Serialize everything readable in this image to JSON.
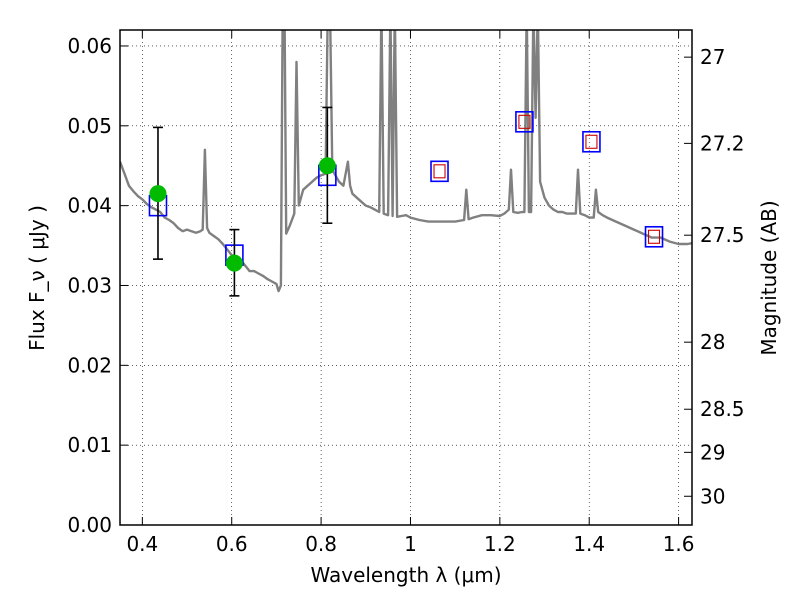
{
  "chart_data": {
    "type": "line",
    "xlabel": "Wavelength  λ (μm)",
    "ylabel": "Flux  F_ν  ( μJy )",
    "ylabel_right": "Magnitude (AB)",
    "xlim": [
      0.35,
      1.63
    ],
    "ylim": [
      0.0,
      0.062
    ],
    "grid": true,
    "x_ticks": [
      0.4,
      0.6,
      0.8,
      1.0,
      1.2,
      1.4,
      1.6
    ],
    "x_tick_labels": [
      "0.4",
      "0.6",
      "0.8",
      "1",
      "1.2",
      "1.4",
      "1.6"
    ],
    "y_ticks": [
      0.0,
      0.01,
      0.02,
      0.03,
      0.04,
      0.05,
      0.06
    ],
    "y_tick_labels": [
      "0.00",
      "0.01",
      "0.02",
      "0.03",
      "0.04",
      "0.05",
      "0.06"
    ],
    "right_ticks": [
      {
        "label": "27",
        "flux": 0.0586
      },
      {
        "label": "27.2",
        "flux": 0.0478
      },
      {
        "label": "27.5",
        "flux": 0.0363
      },
      {
        "label": "28",
        "flux": 0.0229
      },
      {
        "label": "28.5",
        "flux": 0.0145
      },
      {
        "label": "29",
        "flux": 0.0091
      },
      {
        "label": "30",
        "flux": 0.0036
      }
    ],
    "colors": {
      "model": "#808080",
      "photometry": "#00bb00",
      "model_box": "#0000ff",
      "model_inner": "#cc0000",
      "errorbar": "#000000"
    },
    "series": [
      {
        "kind": "model_spectrum",
        "points": [
          [
            0.35,
            0.0455
          ],
          [
            0.36,
            0.044
          ],
          [
            0.37,
            0.0425
          ],
          [
            0.38,
            0.0418
          ],
          [
            0.39,
            0.0412
          ],
          [
            0.4,
            0.0408
          ],
          [
            0.41,
            0.0402
          ],
          [
            0.42,
            0.0398
          ],
          [
            0.43,
            0.0395
          ],
          [
            0.44,
            0.0392
          ],
          [
            0.45,
            0.0385
          ],
          [
            0.46,
            0.0382
          ],
          [
            0.47,
            0.0378
          ],
          [
            0.48,
            0.0372
          ],
          [
            0.49,
            0.0368
          ],
          [
            0.5,
            0.037
          ],
          [
            0.51,
            0.0368
          ],
          [
            0.52,
            0.0366
          ],
          [
            0.53,
            0.0368
          ],
          [
            0.535,
            0.037
          ],
          [
            0.54,
            0.047
          ],
          [
            0.545,
            0.0372
          ],
          [
            0.55,
            0.0366
          ],
          [
            0.56,
            0.0362
          ],
          [
            0.57,
            0.0358
          ],
          [
            0.58,
            0.0352
          ],
          [
            0.59,
            0.0345
          ],
          [
            0.6,
            0.0338
          ],
          [
            0.61,
            0.0335
          ],
          [
            0.62,
            0.0332
          ],
          [
            0.63,
            0.0325
          ],
          [
            0.64,
            0.0318
          ],
          [
            0.65,
            0.0318
          ],
          [
            0.66,
            0.0315
          ],
          [
            0.67,
            0.0312
          ],
          [
            0.68,
            0.0308
          ],
          [
            0.69,
            0.0305
          ],
          [
            0.7,
            0.0302
          ],
          [
            0.705,
            0.0293
          ],
          [
            0.71,
            0.03
          ],
          [
            0.714,
            0.065
          ],
          [
            0.718,
            0.065
          ],
          [
            0.722,
            0.0365
          ],
          [
            0.73,
            0.0375
          ],
          [
            0.74,
            0.039
          ],
          [
            0.745,
            0.058
          ],
          [
            0.75,
            0.04
          ],
          [
            0.76,
            0.042
          ],
          [
            0.77,
            0.0425
          ],
          [
            0.78,
            0.043
          ],
          [
            0.79,
            0.0435
          ],
          [
            0.8,
            0.0438
          ],
          [
            0.81,
            0.044
          ],
          [
            0.815,
            0.065
          ],
          [
            0.82,
            0.065
          ],
          [
            0.825,
            0.0445
          ],
          [
            0.83,
            0.044
          ],
          [
            0.84,
            0.043
          ],
          [
            0.85,
            0.0425
          ],
          [
            0.86,
            0.0455
          ],
          [
            0.865,
            0.0425
          ],
          [
            0.87,
            0.0415
          ],
          [
            0.88,
            0.041
          ],
          [
            0.89,
            0.0405
          ],
          [
            0.9,
            0.04
          ],
          [
            0.91,
            0.0398
          ],
          [
            0.92,
            0.0395
          ],
          [
            0.93,
            0.0392
          ],
          [
            0.935,
            0.065
          ],
          [
            0.94,
            0.039
          ],
          [
            0.95,
            0.0388
          ],
          [
            0.955,
            0.065
          ],
          [
            0.96,
            0.0387
          ],
          [
            0.965,
            0.065
          ],
          [
            0.97,
            0.0386
          ],
          [
            0.98,
            0.0387
          ],
          [
            0.99,
            0.0388
          ],
          [
            1.0,
            0.0385
          ],
          [
            1.02,
            0.0382
          ],
          [
            1.04,
            0.038
          ],
          [
            1.06,
            0.038
          ],
          [
            1.08,
            0.038
          ],
          [
            1.1,
            0.038
          ],
          [
            1.12,
            0.0382
          ],
          [
            1.125,
            0.042
          ],
          [
            1.13,
            0.0383
          ],
          [
            1.14,
            0.0385
          ],
          [
            1.16,
            0.0388
          ],
          [
            1.18,
            0.0388
          ],
          [
            1.2,
            0.0387
          ],
          [
            1.21,
            0.039
          ],
          [
            1.22,
            0.0395
          ],
          [
            1.225,
            0.0445
          ],
          [
            1.23,
            0.0392
          ],
          [
            1.24,
            0.0391
          ],
          [
            1.25,
            0.0392
          ],
          [
            1.255,
            0.0392
          ],
          [
            1.26,
            0.065
          ],
          [
            1.265,
            0.0392
          ],
          [
            1.27,
            0.0392
          ],
          [
            1.275,
            0.065
          ],
          [
            1.28,
            0.051
          ],
          [
            1.285,
            0.065
          ],
          [
            1.29,
            0.043
          ],
          [
            1.3,
            0.041
          ],
          [
            1.31,
            0.04
          ],
          [
            1.32,
            0.0395
          ],
          [
            1.33,
            0.0392
          ],
          [
            1.34,
            0.0392
          ],
          [
            1.35,
            0.039
          ],
          [
            1.36,
            0.039
          ],
          [
            1.37,
            0.039
          ],
          [
            1.375,
            0.0445
          ],
          [
            1.38,
            0.039
          ],
          [
            1.39,
            0.0388
          ],
          [
            1.4,
            0.0385
          ],
          [
            1.41,
            0.0385
          ],
          [
            1.415,
            0.042
          ],
          [
            1.42,
            0.0392
          ],
          [
            1.43,
            0.0388
          ],
          [
            1.44,
            0.0385
          ],
          [
            1.46,
            0.038
          ],
          [
            1.48,
            0.0375
          ],
          [
            1.5,
            0.037
          ],
          [
            1.52,
            0.0365
          ],
          [
            1.54,
            0.036
          ],
          [
            1.56,
            0.036
          ],
          [
            1.58,
            0.0355
          ],
          [
            1.6,
            0.0352
          ],
          [
            1.62,
            0.0352
          ],
          [
            1.63,
            0.0353
          ]
        ]
      },
      {
        "kind": "observed_photometry",
        "points": [
          {
            "x": 0.435,
            "y": 0.0415,
            "yerr_low": 0.0333,
            "yerr_high": 0.0498
          },
          {
            "x": 0.606,
            "y": 0.0328,
            "yerr_low": 0.0287,
            "yerr_high": 0.037
          },
          {
            "x": 0.814,
            "y": 0.045,
            "yerr_low": 0.0378,
            "yerr_high": 0.0523
          }
        ]
      },
      {
        "kind": "model_photometry",
        "points": [
          {
            "x": 0.435,
            "y": 0.04,
            "inner": false
          },
          {
            "x": 0.606,
            "y": 0.0338,
            "inner": false
          },
          {
            "x": 0.814,
            "y": 0.0438,
            "inner": false
          },
          {
            "x": 1.065,
            "y": 0.0443,
            "inner": true
          },
          {
            "x": 1.255,
            "y": 0.0505,
            "inner": true
          },
          {
            "x": 1.405,
            "y": 0.048,
            "inner": true
          },
          {
            "x": 1.545,
            "y": 0.0361,
            "inner": true
          }
        ]
      }
    ]
  }
}
